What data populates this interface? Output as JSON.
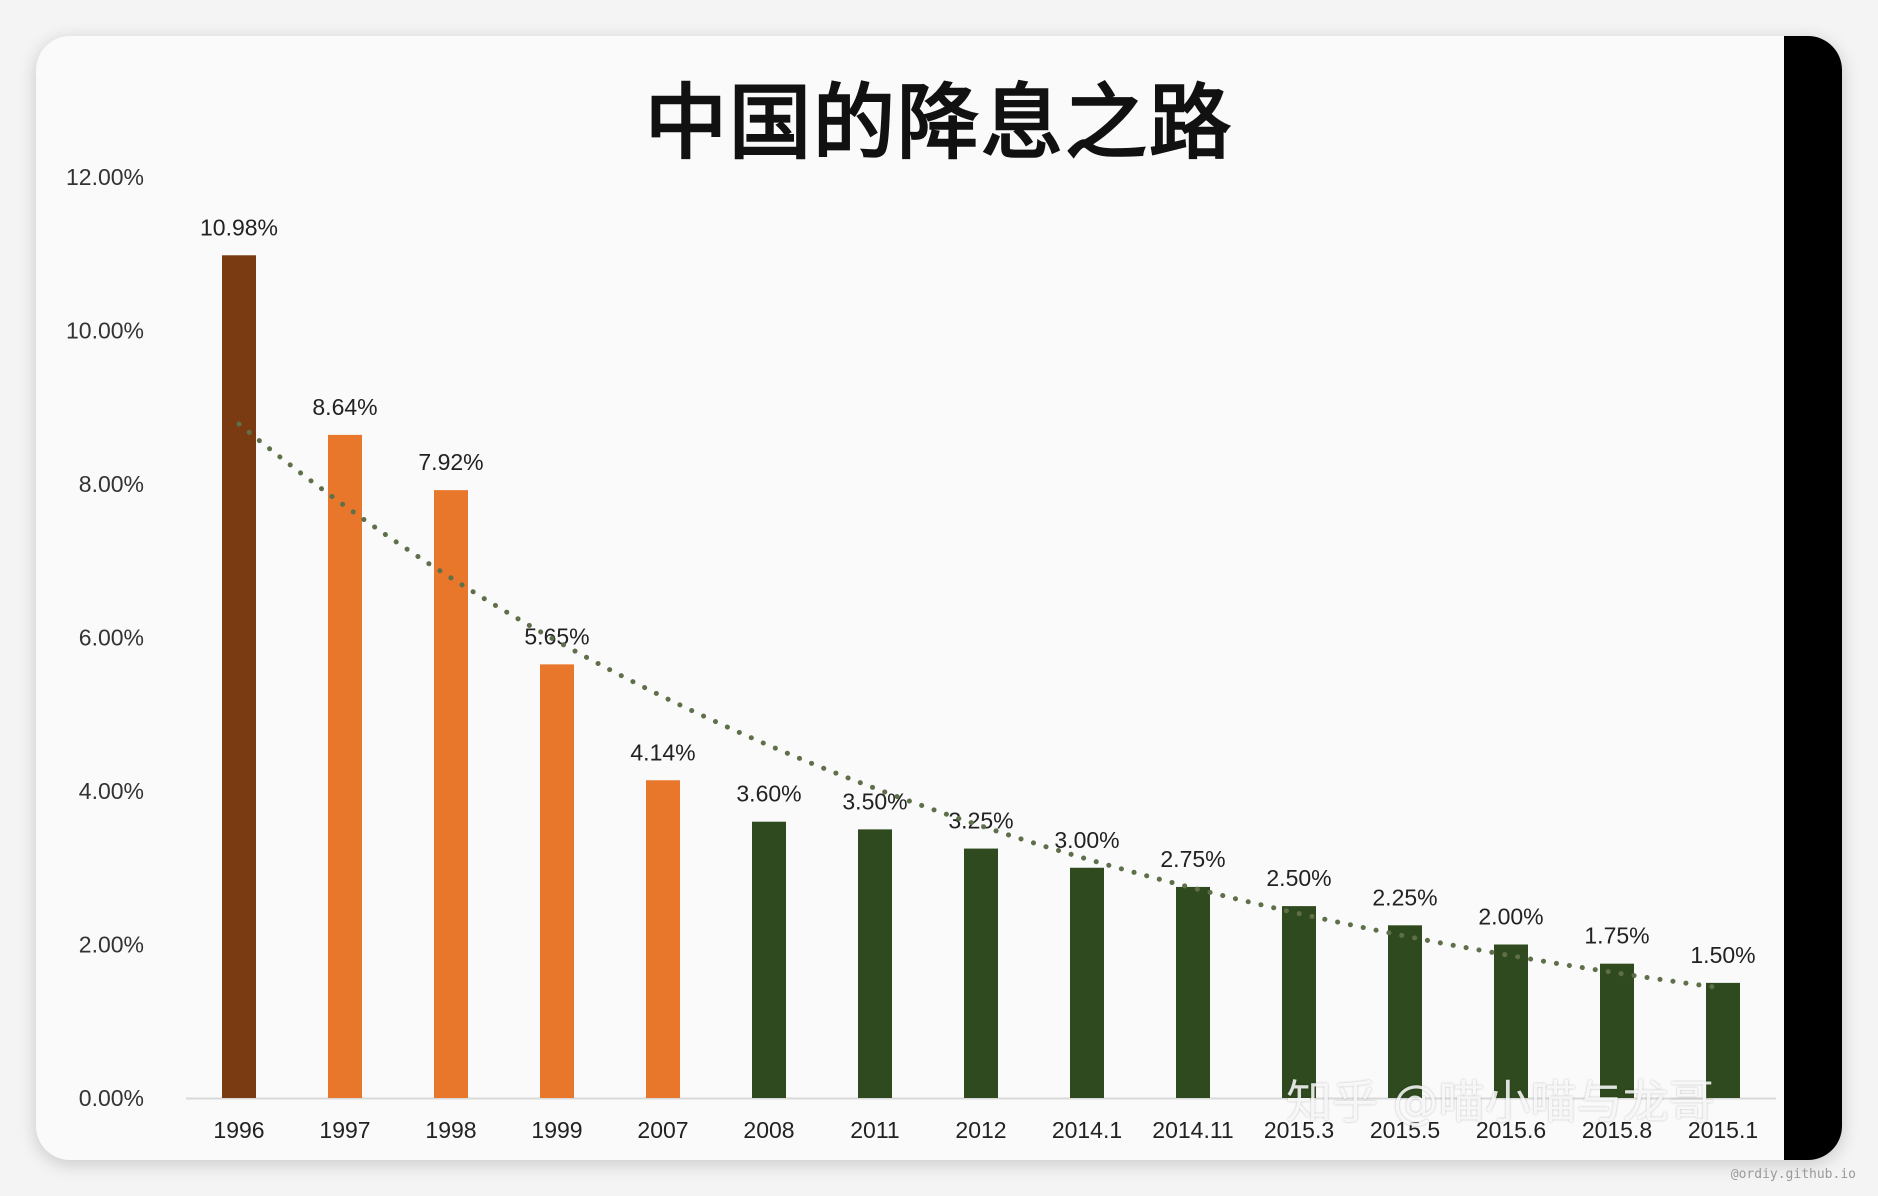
{
  "watermark": {
    "zhihu": "知乎 @喵小喵与龙哥",
    "site": "@ordiy.github.io"
  },
  "chart_data": {
    "type": "bar",
    "title": "中国的降息之路",
    "categories": [
      "1996",
      "1997",
      "1998",
      "1999",
      "2007",
      "2008",
      "2011",
      "2012",
      "2014.1",
      "2014.11",
      "2015.3",
      "2015.5",
      "2015.6",
      "2015.8",
      "2015.1"
    ],
    "values": [
      10.98,
      8.64,
      7.92,
      5.65,
      4.14,
      3.6,
      3.5,
      3.25,
      3.0,
      2.75,
      2.5,
      2.25,
      2.0,
      1.75,
      1.5
    ],
    "value_labels": [
      "10.98%",
      "8.64%",
      "7.92%",
      "5.65%",
      "4.14%",
      "3.60%",
      "3.50%",
      "3.25%",
      "3.00%",
      "2.75%",
      "2.50%",
      "2.25%",
      "2.00%",
      "1.75%",
      "1.50%"
    ],
    "yticks": [
      "0.00%",
      "2.00%",
      "4.00%",
      "6.00%",
      "8.00%",
      "10.00%",
      "12.00%"
    ],
    "ylim": [
      0,
      12
    ],
    "bar_colors": [
      "#7a3b12",
      "#e8762b",
      "#e8762b",
      "#e8762b",
      "#e8762b",
      "#2e4a1e",
      "#2e4a1e",
      "#2e4a1e",
      "#2e4a1e",
      "#2e4a1e",
      "#2e4a1e",
      "#2e4a1e",
      "#2e4a1e",
      "#2e4a1e",
      "#2e4a1e"
    ],
    "trendline": {
      "style": "dotted",
      "color": "#5f6f4a"
    },
    "grid": false,
    "xlabel": "",
    "ylabel": ""
  }
}
